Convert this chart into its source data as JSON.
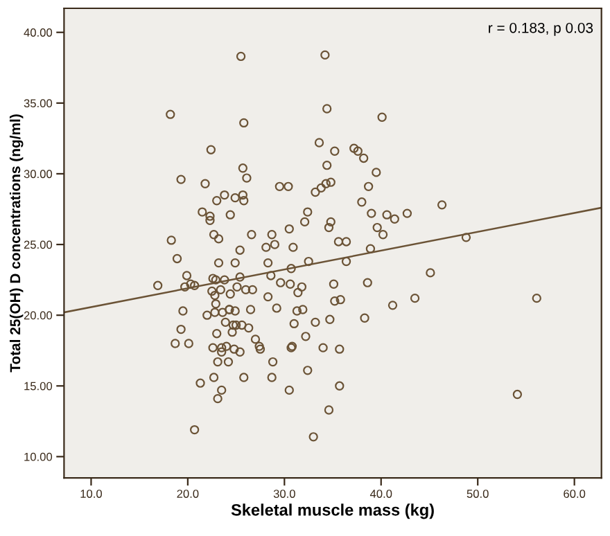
{
  "chart_data": {
    "type": "scatter",
    "xlabel": "Skeletal muscle mass (kg)",
    "ylabel": "Total 25(OH) D concentrations (ng/ml)",
    "annotations": [
      "r = 0.183, p 0.03"
    ],
    "xlim": [
      7.2,
      62.8
    ],
    "ylim": [
      8.5,
      41.7
    ],
    "xticks": [
      {
        "value": 10,
        "label": "10.0"
      },
      {
        "value": 20,
        "label": "20.0"
      },
      {
        "value": 30,
        "label": "30.0"
      },
      {
        "value": 40,
        "label": "40.0"
      },
      {
        "value": 50,
        "label": "50.0"
      },
      {
        "value": 60,
        "label": "60.0"
      }
    ],
    "yticks": [
      {
        "value": 10,
        "label": "10.00"
      },
      {
        "value": 15,
        "label": "15.00"
      },
      {
        "value": 20,
        "label": "20.00"
      },
      {
        "value": 25,
        "label": "25.00"
      },
      {
        "value": 30,
        "label": "30.00"
      },
      {
        "value": 35,
        "label": "35.00"
      },
      {
        "value": 40,
        "label": "40.00"
      }
    ],
    "grid": false,
    "series": [
      {
        "color": "#6b5336",
        "marker": "circle",
        "x": [
          25.5,
          34.2,
          18.2,
          25.8,
          34.4,
          22.4,
          33.6,
          35.2,
          25.7,
          34.4,
          19.3,
          26.1,
          21.8,
          29.5,
          30.4,
          33.2,
          33.8,
          34.3,
          34.8,
          23.8,
          23.0,
          24.9,
          25.7,
          25.8,
          21.5,
          22.3,
          22.3,
          24.4,
          32.4,
          32.1,
          34.8,
          34.6,
          30.5,
          22.7,
          23.2,
          26.6,
          28.7,
          18.3,
          28.1,
          29.0,
          30.9,
          25.4,
          35.6,
          36.4,
          18.9,
          23.2,
          24.9,
          28.3,
          32.5,
          36.4,
          19.9,
          22.6,
          25.4,
          28.6,
          30.7,
          40.1,
          37.2,
          37.6,
          38.2,
          39.5,
          38.7,
          38.0,
          39.0,
          40.6,
          41.4,
          42.7,
          46.3,
          39.6,
          40.2,
          48.8,
          38.9,
          45.1,
          38.6,
          35.8,
          41.2,
          43.5,
          56.1,
          38.3,
          35.7,
          35.7,
          54.1,
          16.9,
          19.7,
          20.3,
          20.7,
          22.9,
          23.8,
          22.5,
          23.4,
          22.8,
          24.4,
          25.1,
          26.0,
          26.7,
          29.6,
          30.6,
          31.8,
          31.4,
          35.1,
          28.3,
          22.9,
          19.5,
          22.0,
          22.8,
          23.6,
          24.3,
          24.3,
          24.9,
          26.5,
          29.2,
          31.3,
          31.9,
          35.2,
          23.9,
          24.7,
          25.0,
          25.6,
          26.3,
          31.0,
          33.2,
          34.7,
          19.3,
          23.0,
          24.6,
          27.0,
          32.2,
          18.7,
          20.1,
          22.6,
          23.5,
          24.0,
          23.5,
          24.8,
          25.4,
          27.4,
          27.5,
          30.7,
          30.8,
          34.0,
          23.1,
          24.2,
          28.8,
          22.7,
          25.8,
          28.7,
          32.4,
          21.3,
          23.5,
          23.1,
          30.5,
          34.6,
          20.7,
          33.0
        ],
        "values": [
          38.3,
          38.4,
          34.2,
          33.6,
          34.6,
          31.7,
          32.2,
          31.6,
          30.4,
          30.6,
          29.6,
          29.7,
          29.3,
          29.1,
          29.1,
          28.7,
          29.0,
          29.3,
          29.4,
          28.5,
          28.1,
          28.3,
          28.5,
          28.1,
          27.3,
          27.0,
          26.7,
          27.1,
          27.3,
          26.6,
          26.6,
          26.2,
          26.1,
          25.7,
          25.4,
          25.7,
          25.7,
          25.3,
          24.8,
          25.0,
          24.8,
          24.6,
          25.2,
          25.2,
          24.0,
          23.7,
          23.7,
          23.7,
          23.8,
          23.8,
          22.8,
          22.6,
          22.7,
          22.8,
          23.3,
          34.0,
          31.8,
          31.6,
          31.1,
          30.1,
          29.1,
          28.0,
          27.2,
          27.1,
          26.8,
          27.2,
          27.8,
          26.2,
          25.7,
          25.5,
          24.7,
          23.0,
          22.3,
          21.1,
          20.7,
          21.2,
          21.2,
          19.8,
          17.6,
          15.0,
          14.4,
          22.1,
          22.0,
          22.2,
          22.1,
          22.5,
          22.5,
          21.7,
          21.8,
          21.4,
          21.5,
          22.0,
          21.8,
          21.8,
          22.3,
          22.2,
          22.0,
          21.6,
          22.2,
          21.3,
          20.8,
          20.3,
          20.0,
          20.2,
          20.2,
          20.4,
          20.4,
          20.3,
          20.4,
          20.5,
          20.3,
          20.4,
          21.0,
          19.5,
          19.3,
          19.3,
          19.3,
          19.1,
          19.4,
          19.5,
          19.7,
          19.0,
          18.7,
          18.8,
          18.3,
          18.5,
          18.0,
          18.0,
          17.7,
          17.7,
          17.8,
          17.4,
          17.6,
          17.4,
          17.8,
          17.6,
          17.7,
          17.8,
          17.7,
          16.7,
          16.7,
          16.7,
          15.6,
          15.6,
          15.6,
          16.1,
          15.2,
          14.7,
          14.1,
          14.7,
          13.3,
          11.9,
          11.4
        ]
      },
      {
        "type": "line",
        "marker": "none",
        "color": "#6b5336",
        "x": [
          7.2,
          62.8
        ],
        "values": [
          20.2,
          27.6
        ]
      }
    ]
  }
}
